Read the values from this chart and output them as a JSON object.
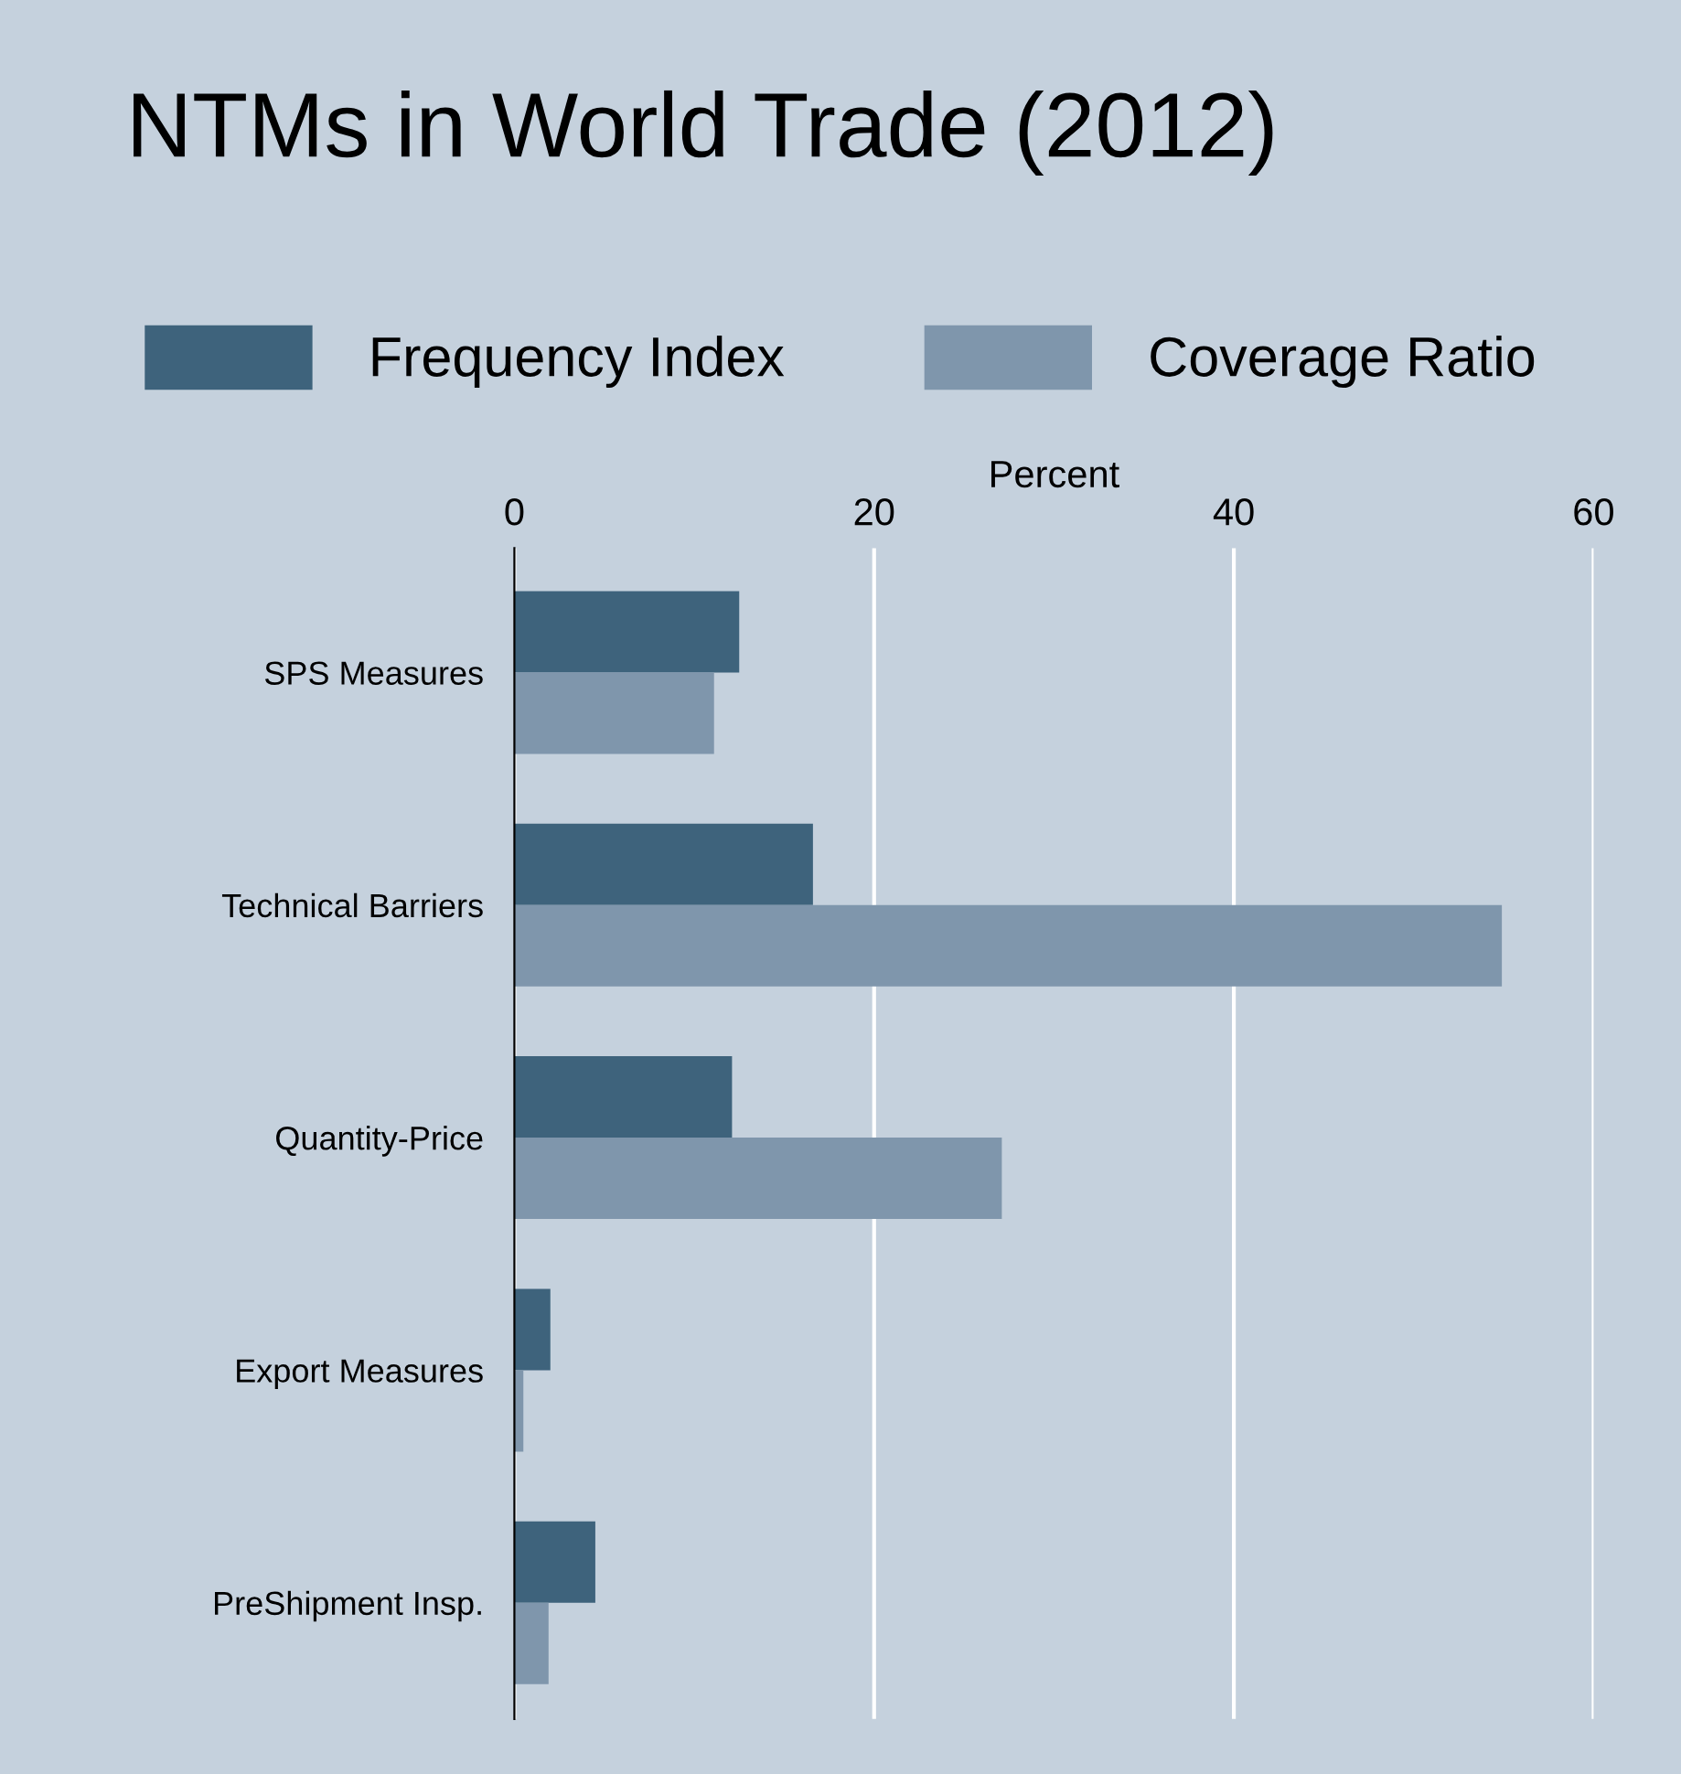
{
  "chart_data": {
    "type": "bar",
    "orientation": "horizontal",
    "title": "NTMs in World Trade (2012)",
    "xlabel": "Percent",
    "categories": [
      "SPS Measures",
      "Technical Barriers",
      "Quantity-Price",
      "Export Measures",
      "PreShipment Insp."
    ],
    "series": [
      {
        "name": "Frequency Index",
        "color": "#3e637c",
        "values": [
          12.5,
          16.6,
          12.1,
          2.0,
          4.5
        ]
      },
      {
        "name": "Coverage Ratio",
        "color": "#7f96ac",
        "values": [
          11.1,
          54.9,
          27.1,
          0.5,
          1.9
        ]
      }
    ],
    "xlim": [
      0,
      60
    ],
    "xticks": [
      0,
      20,
      40,
      60
    ],
    "grid": "x",
    "legend": "top"
  }
}
